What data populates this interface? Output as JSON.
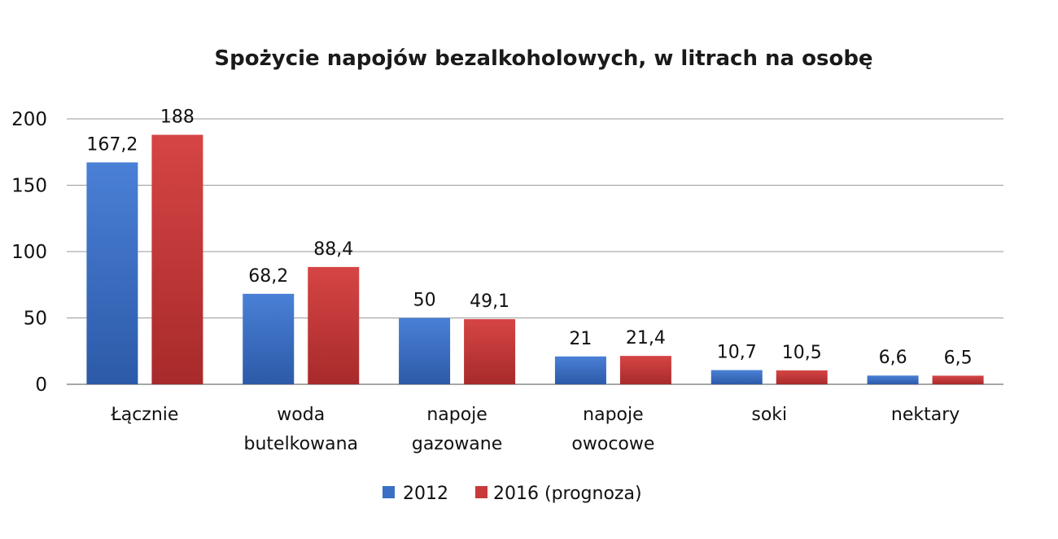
{
  "chart_data": {
    "type": "bar",
    "title": "Spożycie napojów bezalkoholowych, w litrach na osobę",
    "categories": [
      [
        "Łącznie"
      ],
      [
        "woda",
        "butelkowana"
      ],
      [
        "napoje",
        "gazowane"
      ],
      [
        "napoje",
        "owocowe"
      ],
      [
        "soki"
      ],
      [
        "nektary"
      ]
    ],
    "series": [
      {
        "name": "2012",
        "color": "#3a6fc4",
        "values": [
          167.2,
          68.2,
          50,
          21,
          10.7,
          6.6
        ],
        "labels": [
          "167,2",
          "68,2",
          "50",
          "21",
          "10,7",
          "6,6"
        ]
      },
      {
        "name": "2016 (prognoza)",
        "color": "#c93a3a",
        "values": [
          188,
          88.4,
          49.1,
          21.4,
          10.5,
          6.5
        ],
        "labels": [
          "188",
          "88,4",
          "49,1",
          "21,4",
          "10,5",
          "6,5"
        ]
      }
    ],
    "ylim": [
      0,
      200
    ],
    "yticks": [
      0,
      50,
      100,
      150,
      200
    ],
    "grid": true,
    "legend_position": "bottom"
  }
}
